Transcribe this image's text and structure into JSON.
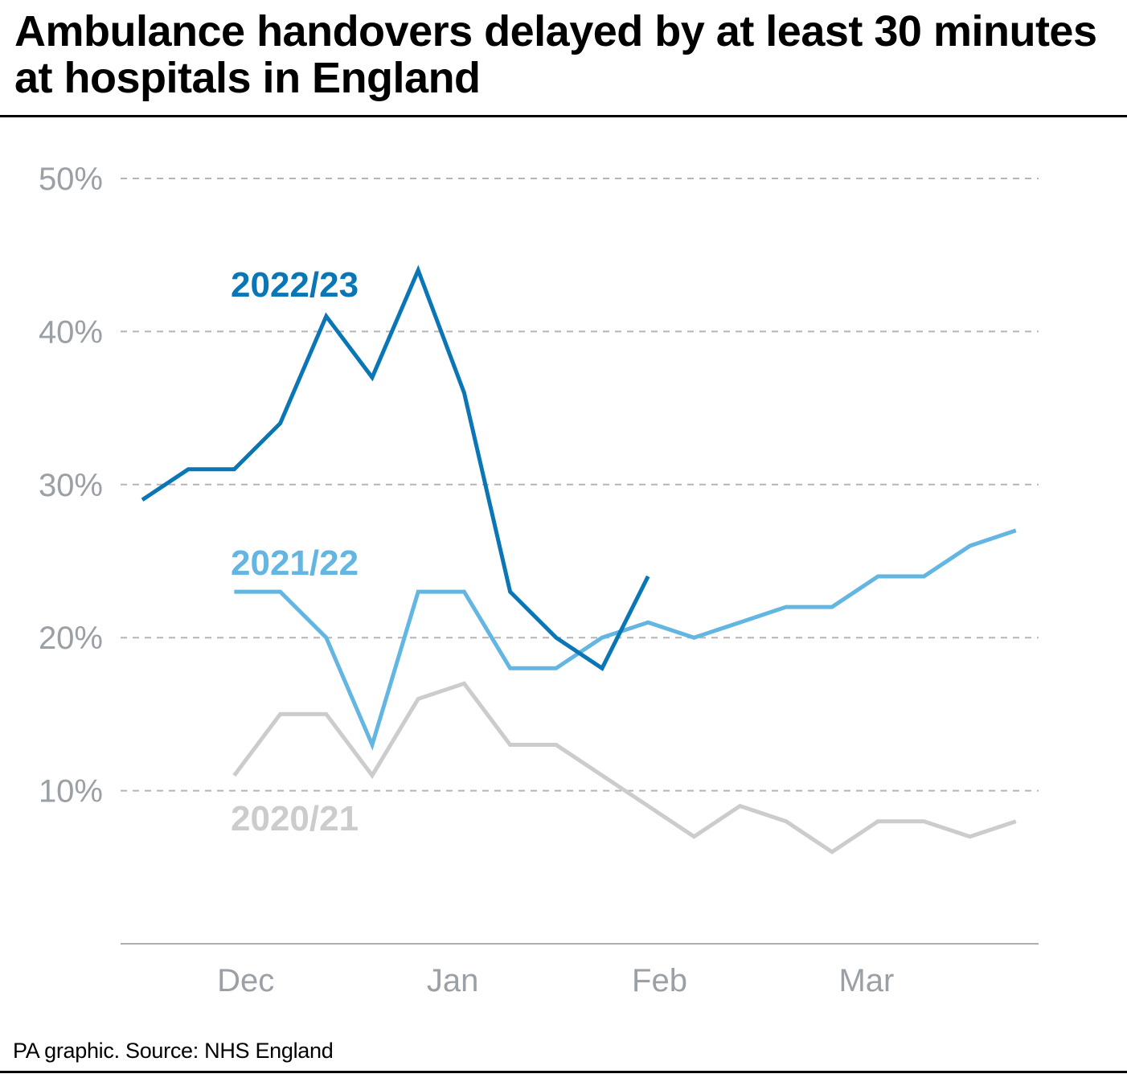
{
  "title": "Ambulance handovers delayed by at least 30 minutes at hospitals in England",
  "source": "PA graphic. Source: NHS England",
  "chart_data": {
    "type": "line",
    "title": "Ambulance handovers delayed by at least 30 minutes at hospitals in England",
    "xlabel": "",
    "ylabel": "",
    "x_tick_labels": [
      "Dec",
      "Jan",
      "Feb",
      "Mar"
    ],
    "x_tick_weeks": [
      2.25,
      6.75,
      11.25,
      15.75
    ],
    "y_ticks": [
      10,
      20,
      30,
      40,
      50
    ],
    "y_tick_labels": [
      "10%",
      "20%",
      "30%",
      "40%",
      "50%"
    ],
    "ylim": [
      0,
      50
    ],
    "x_range": [
      -0.5,
      19.5
    ],
    "grid": "dashed horizontal",
    "series": [
      {
        "name": "2022/23",
        "color": "#0a76b5",
        "x": [
          0,
          1,
          2,
          3,
          4,
          5,
          6,
          7,
          8,
          9,
          10,
          11
        ],
        "values": [
          29,
          31,
          31,
          34,
          41,
          37,
          44,
          36,
          23,
          20,
          18,
          24
        ]
      },
      {
        "name": "2021/22",
        "color": "#63b6e1",
        "x": [
          2,
          3,
          4,
          5,
          6,
          7,
          8,
          9,
          10,
          11,
          12,
          13,
          14,
          15,
          16,
          17,
          18,
          19
        ],
        "values": [
          23,
          23,
          20,
          13,
          23,
          23,
          18,
          18,
          20,
          21,
          20,
          21,
          22,
          22,
          24,
          24,
          26,
          27
        ]
      },
      {
        "name": "2020/21",
        "color": "#cccccc",
        "x": [
          2,
          3,
          4,
          5,
          6,
          7,
          8,
          9,
          10,
          11,
          12,
          13,
          14,
          15,
          16,
          17,
          18,
          19
        ],
        "values": [
          11,
          15,
          15,
          11,
          16,
          17,
          13,
          13,
          11,
          9,
          7,
          9,
          8,
          6,
          8,
          8,
          7,
          8
        ]
      }
    ],
    "label_colors": {
      "axis_text": "#9aa0a6",
      "grid": "#b5b5b5",
      "baseline": "#b0b0b0"
    }
  }
}
